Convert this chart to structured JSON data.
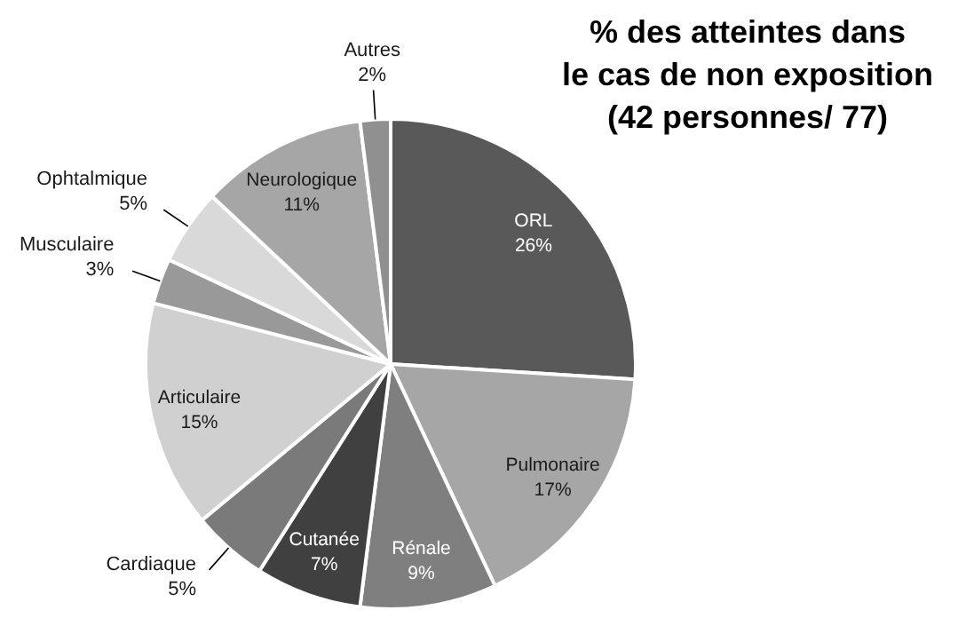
{
  "chart_data": {
    "type": "pie",
    "title": "% des atteintes dans\nle cas de non exposition\n(42 personnes/ 77)",
    "categories": [
      "ORL",
      "Pulmonaire",
      "Rénale",
      "Cutanée",
      "Cardiaque",
      "Articulaire",
      "Musculaire",
      "Ophtalmique",
      "Neurologique",
      "Autres"
    ],
    "values": [
      26,
      17,
      9,
      7,
      5,
      15,
      3,
      5,
      11,
      2
    ],
    "value_labels": [
      "26%",
      "17%",
      "9%",
      "7%",
      "5%",
      "15%",
      "3%",
      "5%",
      "11%",
      "2%"
    ],
    "colors": [
      "#595959",
      "#a6a6a6",
      "#7f7f7f",
      "#404040",
      "#7a7a7a",
      "#d0d0d0",
      "#999999",
      "#d9d9d9",
      "#a6a6a6",
      "#909090"
    ]
  }
}
